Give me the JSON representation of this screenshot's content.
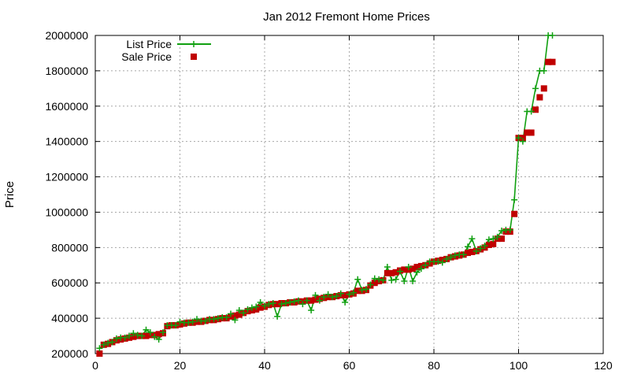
{
  "chart_data": {
    "type": "line",
    "title": "Jan 2012 Fremont Home Prices",
    "xlabel": "",
    "ylabel": "Price",
    "xlim": [
      0,
      120
    ],
    "ylim": [
      200000,
      2000000
    ],
    "x_ticks": [
      0,
      20,
      40,
      60,
      80,
      100,
      120
    ],
    "y_ticks": [
      200000,
      400000,
      600000,
      800000,
      1000000,
      1200000,
      1400000,
      1600000,
      1800000,
      2000000
    ],
    "grid": true,
    "legend_position": "top-left",
    "series": [
      {
        "name": "List Price",
        "style": "line+crosses",
        "color": "#11a011",
        "values": [
          [
            1,
            230000
          ],
          [
            2,
            250000
          ],
          [
            3,
            260000
          ],
          [
            4,
            265000
          ],
          [
            5,
            285000
          ],
          [
            6,
            290000
          ],
          [
            7,
            290000
          ],
          [
            8,
            300000
          ],
          [
            9,
            315000
          ],
          [
            10,
            305000
          ],
          [
            11,
            300000
          ],
          [
            12,
            335000
          ],
          [
            13,
            320000
          ],
          [
            14,
            295000
          ],
          [
            15,
            280000
          ],
          [
            16,
            320000
          ],
          [
            17,
            360000
          ],
          [
            18,
            360000
          ],
          [
            19,
            360000
          ],
          [
            20,
            380000
          ],
          [
            21,
            375000
          ],
          [
            22,
            375000
          ],
          [
            23,
            380000
          ],
          [
            24,
            395000
          ],
          [
            25,
            385000
          ],
          [
            26,
            385000
          ],
          [
            27,
            395000
          ],
          [
            28,
            395000
          ],
          [
            29,
            400000
          ],
          [
            30,
            405000
          ],
          [
            31,
            405000
          ],
          [
            32,
            425000
          ],
          [
            33,
            390000
          ],
          [
            34,
            445000
          ],
          [
            35,
            430000
          ],
          [
            36,
            450000
          ],
          [
            37,
            460000
          ],
          [
            38,
            465000
          ],
          [
            39,
            490000
          ],
          [
            40,
            470000
          ],
          [
            41,
            480000
          ],
          [
            42,
            485000
          ],
          [
            43,
            410000
          ],
          [
            44,
            480000
          ],
          [
            45,
            485000
          ],
          [
            46,
            490000
          ],
          [
            47,
            495000
          ],
          [
            48,
            500000
          ],
          [
            49,
            480000
          ],
          [
            50,
            500000
          ],
          [
            51,
            445000
          ],
          [
            52,
            530000
          ],
          [
            53,
            500000
          ],
          [
            54,
            520000
          ],
          [
            55,
            535000
          ],
          [
            56,
            520000
          ],
          [
            57,
            525000
          ],
          [
            58,
            540000
          ],
          [
            59,
            490000
          ],
          [
            60,
            535000
          ],
          [
            61,
            545000
          ],
          [
            62,
            620000
          ],
          [
            63,
            560000
          ],
          [
            64,
            565000
          ],
          [
            65,
            590000
          ],
          [
            66,
            625000
          ],
          [
            67,
            620000
          ],
          [
            68,
            615000
          ],
          [
            69,
            690000
          ],
          [
            70,
            615000
          ],
          [
            71,
            620000
          ],
          [
            72,
            665000
          ],
          [
            73,
            610000
          ],
          [
            74,
            690000
          ],
          [
            75,
            610000
          ],
          [
            76,
            660000
          ],
          [
            77,
            680000
          ],
          [
            78,
            700000
          ],
          [
            79,
            720000
          ],
          [
            80,
            720000
          ],
          [
            81,
            720000
          ],
          [
            82,
            715000
          ],
          [
            83,
            735000
          ],
          [
            84,
            745000
          ],
          [
            85,
            755000
          ],
          [
            86,
            760000
          ],
          [
            87,
            760000
          ],
          [
            88,
            805000
          ],
          [
            89,
            850000
          ],
          [
            90,
            780000
          ],
          [
            91,
            795000
          ],
          [
            92,
            810000
          ],
          [
            93,
            845000
          ],
          [
            94,
            850000
          ],
          [
            95,
            860000
          ],
          [
            96,
            895000
          ],
          [
            97,
            900000
          ],
          [
            98,
            900000
          ],
          [
            99,
            1070000
          ],
          [
            100,
            1420000
          ],
          [
            101,
            1400000
          ],
          [
            102,
            1570000
          ],
          [
            103,
            1570000
          ],
          [
            104,
            1700000
          ],
          [
            105,
            1800000
          ],
          [
            106,
            1800000
          ],
          [
            107,
            2000000
          ],
          [
            108,
            2000000
          ]
        ]
      },
      {
        "name": "Sale Price",
        "style": "squares",
        "color": "#c00000",
        "values": [
          [
            1,
            200000
          ],
          [
            2,
            250000
          ],
          [
            3,
            255000
          ],
          [
            4,
            265000
          ],
          [
            5,
            275000
          ],
          [
            6,
            280000
          ],
          [
            7,
            285000
          ],
          [
            8,
            290000
          ],
          [
            9,
            295000
          ],
          [
            10,
            300000
          ],
          [
            11,
            300000
          ],
          [
            12,
            300000
          ],
          [
            13,
            305000
          ],
          [
            14,
            305000
          ],
          [
            15,
            310000
          ],
          [
            16,
            315000
          ],
          [
            17,
            355000
          ],
          [
            18,
            360000
          ],
          [
            19,
            360000
          ],
          [
            20,
            365000
          ],
          [
            21,
            370000
          ],
          [
            22,
            375000
          ],
          [
            23,
            375000
          ],
          [
            24,
            380000
          ],
          [
            25,
            380000
          ],
          [
            26,
            385000
          ],
          [
            27,
            390000
          ],
          [
            28,
            390000
          ],
          [
            29,
            395000
          ],
          [
            30,
            400000
          ],
          [
            31,
            400000
          ],
          [
            32,
            410000
          ],
          [
            33,
            415000
          ],
          [
            34,
            420000
          ],
          [
            35,
            430000
          ],
          [
            36,
            440000
          ],
          [
            37,
            445000
          ],
          [
            38,
            450000
          ],
          [
            39,
            460000
          ],
          [
            40,
            465000
          ],
          [
            41,
            475000
          ],
          [
            42,
            480000
          ],
          [
            43,
            480000
          ],
          [
            44,
            485000
          ],
          [
            45,
            485000
          ],
          [
            46,
            490000
          ],
          [
            47,
            490000
          ],
          [
            48,
            495000
          ],
          [
            49,
            495000
          ],
          [
            50,
            500000
          ],
          [
            51,
            500000
          ],
          [
            52,
            505000
          ],
          [
            53,
            510000
          ],
          [
            54,
            515000
          ],
          [
            55,
            520000
          ],
          [
            56,
            520000
          ],
          [
            57,
            525000
          ],
          [
            58,
            530000
          ],
          [
            59,
            530000
          ],
          [
            60,
            535000
          ],
          [
            61,
            540000
          ],
          [
            62,
            555000
          ],
          [
            63,
            555000
          ],
          [
            64,
            560000
          ],
          [
            65,
            585000
          ],
          [
            66,
            600000
          ],
          [
            67,
            610000
          ],
          [
            68,
            615000
          ],
          [
            69,
            655000
          ],
          [
            70,
            655000
          ],
          [
            71,
            660000
          ],
          [
            72,
            670000
          ],
          [
            73,
            675000
          ],
          [
            74,
            675000
          ],
          [
            75,
            680000
          ],
          [
            76,
            690000
          ],
          [
            77,
            695000
          ],
          [
            78,
            700000
          ],
          [
            79,
            710000
          ],
          [
            80,
            720000
          ],
          [
            81,
            725000
          ],
          [
            82,
            730000
          ],
          [
            83,
            735000
          ],
          [
            84,
            745000
          ],
          [
            85,
            750000
          ],
          [
            86,
            755000
          ],
          [
            87,
            760000
          ],
          [
            88,
            770000
          ],
          [
            89,
            775000
          ],
          [
            90,
            780000
          ],
          [
            91,
            790000
          ],
          [
            92,
            800000
          ],
          [
            93,
            815000
          ],
          [
            94,
            820000
          ],
          [
            95,
            850000
          ],
          [
            96,
            850000
          ],
          [
            97,
            890000
          ],
          [
            98,
            890000
          ],
          [
            99,
            990000
          ],
          [
            100,
            1420000
          ],
          [
            101,
            1420000
          ],
          [
            102,
            1450000
          ],
          [
            103,
            1450000
          ],
          [
            104,
            1580000
          ],
          [
            105,
            1650000
          ],
          [
            106,
            1700000
          ],
          [
            107,
            1850000
          ],
          [
            108,
            1850000
          ]
        ]
      }
    ]
  }
}
